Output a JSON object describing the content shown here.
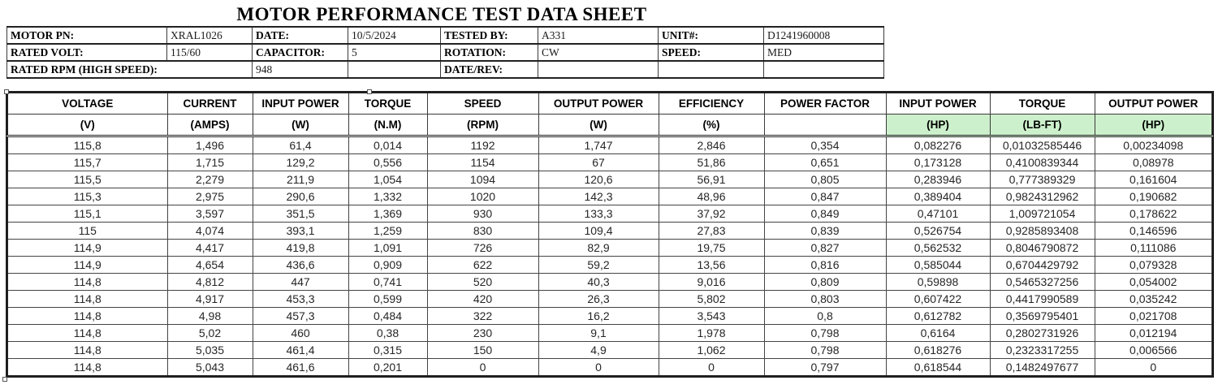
{
  "title": "MOTOR PERFORMANCE TEST DATA SHEET",
  "colors": {
    "header_highlight": "#cdf0cc",
    "border": "#3a3a3a"
  },
  "info": {
    "motor_pn_label": "MOTOR PN:",
    "motor_pn": "XRAL1026",
    "date_label": "DATE:",
    "date": "10/5/2024",
    "tested_by_label": "TESTED BY:",
    "tested_by": "A331",
    "unit_label": "UNIT#:",
    "unit": "D1241960008",
    "rated_volt_label": "RATED VOLT:",
    "rated_volt": "115/60",
    "capacitor_label": "CAPACITOR:",
    "capacitor": "5",
    "rotation_label": "ROTATION:",
    "rotation": "CW",
    "speed_label": "SPEED:",
    "speed": "MED",
    "rated_rpm_label": "RATED RPM (HIGH SPEED):",
    "rated_rpm": "948",
    "date_rev_label": "DATE/REV:",
    "date_rev": ""
  },
  "main_table": {
    "columns": [
      {
        "key": "voltage_v",
        "name": "VOLTAGE",
        "unit": "(V)",
        "highlight": false
      },
      {
        "key": "current_amps",
        "name": "CURRENT",
        "unit": "(AMPS)",
        "highlight": false
      },
      {
        "key": "input_power_w",
        "name": "INPUT POWER",
        "unit": "(W)",
        "highlight": false
      },
      {
        "key": "torque_nm",
        "name": "TORQUE",
        "unit": "(N.M)",
        "highlight": false
      },
      {
        "key": "speed_rpm",
        "name": "SPEED",
        "unit": "(RPM)",
        "highlight": false
      },
      {
        "key": "output_power_w",
        "name": "OUTPUT POWER",
        "unit": "(W)",
        "highlight": false
      },
      {
        "key": "efficiency_pct",
        "name": "EFFICIENCY",
        "unit": "(%)",
        "highlight": false
      },
      {
        "key": "power_factor",
        "name": "POWER FACTOR",
        "unit": "",
        "highlight": false
      },
      {
        "key": "input_power_hp",
        "name": "INPUT POWER",
        "unit": "(HP)",
        "highlight": true
      },
      {
        "key": "torque_lbft",
        "name": "TORQUE",
        "unit": "(LB-FT)",
        "highlight": true
      },
      {
        "key": "output_power_hp",
        "name": "OUTPUT POWER",
        "unit": "(HP)",
        "highlight": true
      }
    ],
    "rows": [
      [
        "115,8",
        "1,496",
        "61,4",
        "0,014",
        "1192",
        "1,747",
        "2,846",
        "0,354",
        "0,082276",
        "0,01032585446",
        "0,00234098"
      ],
      [
        "115,7",
        "1,715",
        "129,2",
        "0,556",
        "1154",
        "67",
        "51,86",
        "0,651",
        "0,173128",
        "0,4100839344",
        "0,08978"
      ],
      [
        "115,5",
        "2,279",
        "211,9",
        "1,054",
        "1094",
        "120,6",
        "56,91",
        "0,805",
        "0,283946",
        "0,777389329",
        "0,161604"
      ],
      [
        "115,3",
        "2,975",
        "290,6",
        "1,332",
        "1020",
        "142,3",
        "48,96",
        "0,847",
        "0,389404",
        "0,9824312962",
        "0,190682"
      ],
      [
        "115,1",
        "3,597",
        "351,5",
        "1,369",
        "930",
        "133,3",
        "37,92",
        "0,849",
        "0,47101",
        "1,009721054",
        "0,178622"
      ],
      [
        "115",
        "4,074",
        "393,1",
        "1,259",
        "830",
        "109,4",
        "27,83",
        "0,839",
        "0,526754",
        "0,9285893408",
        "0,146596"
      ],
      [
        "114,9",
        "4,417",
        "419,8",
        "1,091",
        "726",
        "82,9",
        "19,75",
        "0,827",
        "0,562532",
        "0,8046790872",
        "0,111086"
      ],
      [
        "114,9",
        "4,654",
        "436,6",
        "0,909",
        "622",
        "59,2",
        "13,56",
        "0,816",
        "0,585044",
        "0,6704429792",
        "0,079328"
      ],
      [
        "114,8",
        "4,812",
        "447",
        "0,741",
        "520",
        "40,3",
        "9,016",
        "0,809",
        "0,59898",
        "0,5465327256",
        "0,054002"
      ],
      [
        "114,8",
        "4,917",
        "453,3",
        "0,599",
        "420",
        "26,3",
        "5,802",
        "0,803",
        "0,607422",
        "0,4417990589",
        "0,035242"
      ],
      [
        "114,8",
        "4,98",
        "457,3",
        "0,484",
        "322",
        "16,2",
        "3,543",
        "0,8",
        "0,612782",
        "0,3569795401",
        "0,021708"
      ],
      [
        "114,8",
        "5,02",
        "460",
        "0,38",
        "230",
        "9,1",
        "1,978",
        "0,798",
        "0,6164",
        "0,2802731926",
        "0,012194"
      ],
      [
        "114,8",
        "5,035",
        "461,4",
        "0,315",
        "150",
        "4,9",
        "1,062",
        "0,798",
        "0,618276",
        "0,2323317255",
        "0,006566"
      ],
      [
        "114,8",
        "5,043",
        "461,6",
        "0,201",
        "0",
        "0",
        "0",
        "0,797",
        "0,618544",
        "0,1482497677",
        "0"
      ]
    ]
  }
}
